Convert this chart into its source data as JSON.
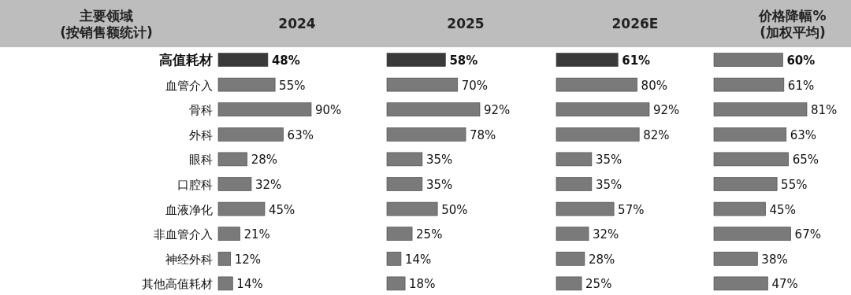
{
  "chart_data": [
    {
      "type": "bar",
      "orientation": "horizontal",
      "title": "2024",
      "ylabel": "主要领域\n(按销售额统计)",
      "tick_labels": "y",
      "categories": [
        "高值耗材",
        "血管介入",
        "骨科",
        "外科",
        "眼科",
        "口腔科",
        "血液净化",
        "非血管介入",
        "神经外科",
        "其他高值耗材"
      ],
      "values": [
        48,
        55,
        90,
        63,
        28,
        32,
        45,
        21,
        12,
        14
      ],
      "value_labels": [
        "48%",
        "55%",
        "90%",
        "63%",
        "28%",
        "32%",
        "45%",
        "21%",
        "12%",
        "14%"
      ],
      "colors": [
        "#3a3a3a",
        "#7a7a7a",
        "#7a7a7a",
        "#7a7a7a",
        "#7a7a7a",
        "#7a7a7a",
        "#7a7a7a",
        "#7a7a7a",
        "#7a7a7a",
        "#7a7a7a"
      ]
    },
    {
      "type": "bar",
      "orientation": "horizontal",
      "title": "2025",
      "tick_labels": false,
      "values": [
        58,
        70,
        92,
        78,
        35,
        35,
        50,
        25,
        14,
        18
      ],
      "value_labels": [
        "58%",
        "70%",
        "92%",
        "78%",
        "35%",
        "35%",
        "50%",
        "25%",
        "14%",
        "18%"
      ],
      "colors": [
        "#3a3a3a",
        "#7a7a7a",
        "#7a7a7a",
        "#7a7a7a",
        "#7a7a7a",
        "#7a7a7a",
        "#7a7a7a",
        "#7a7a7a",
        "#7a7a7a",
        "#7a7a7a"
      ]
    },
    {
      "type": "bar",
      "orientation": "horizontal",
      "title": "2026E",
      "tick_labels": false,
      "values": [
        61,
        80,
        92,
        82,
        35,
        35,
        57,
        32,
        28,
        25
      ],
      "value_labels": [
        "61%",
        "80%",
        "92%",
        "82%",
        "35%",
        "35%",
        "57%",
        "32%",
        "28%",
        "25%"
      ],
      "colors": [
        "#3a3a3a",
        "#7a7a7a",
        "#7a7a7a",
        "#7a7a7a",
        "#7a7a7a",
        "#7a7a7a",
        "#7a7a7a",
        "#7a7a7a",
        "#7a7a7a",
        "#7a7a7a"
      ]
    },
    {
      "type": "bar",
      "orientation": "horizontal",
      "title": "价格降幅%\n(加权平均)",
      "tick_labels": false,
      "values": [
        60,
        61,
        81,
        63,
        65,
        55,
        45,
        67,
        38,
        47
      ],
      "value_labels": [
        "60%",
        "61%",
        "81%",
        "63%",
        "65%",
        "55%",
        "45%",
        "67%",
        "38%",
        "47%"
      ],
      "colors": [
        "#777777",
        "#7a7a7a",
        "#7a7a7a",
        "#7a7a7a",
        "#7a7a7a",
        "#7a7a7a",
        "#7a7a7a",
        "#7a7a7a",
        "#7a7a7a",
        "#7a7a7a"
      ]
    }
  ]
}
